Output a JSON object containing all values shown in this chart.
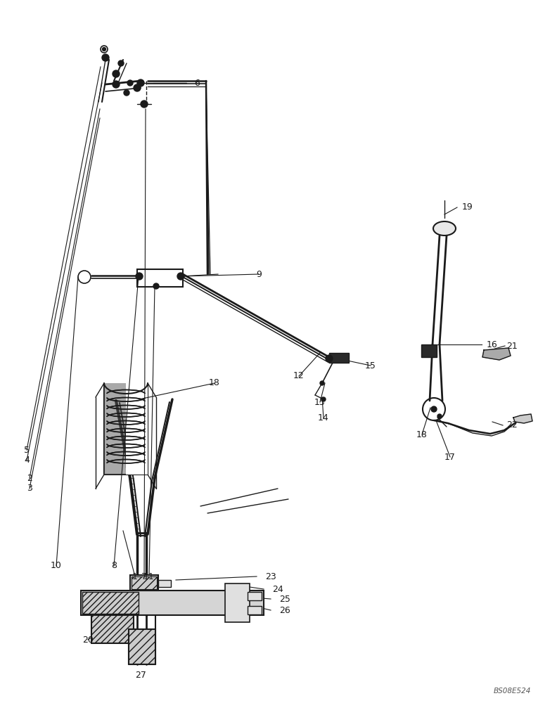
{
  "bg_color": "#ffffff",
  "lc": "#1a1a1a",
  "watermark": "BS08E524",
  "fig_w": 7.92,
  "fig_h": 10.0,
  "dpi": 100
}
